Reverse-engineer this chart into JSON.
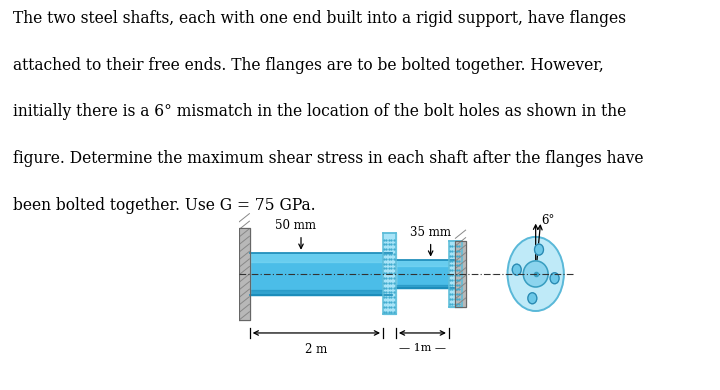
{
  "text_lines": [
    "The two steel shafts, each with one end built into a rigid support, have flanges",
    "attached to their free ends. The flanges are to be bolted together. However,",
    "initially there is a 6° mismatch in the location of the bolt holes as shown in the",
    "figure. Determine the maximum shear stress in each shaft after the flanges have",
    "been bolted together. Use G = 75 GPa."
  ],
  "font_size": 11.2,
  "bg_color": "#ffffff",
  "shaft_color_light": "#7dd8f5",
  "shaft_color_mid": "#4bbde8",
  "shaft_color_dark": "#1a8ab8",
  "wall_color": "#b8b8b8",
  "wall_hatch_color": "#888888",
  "flange_face_color": "#a8e4f8",
  "flange_face_dark": "#5bbcd8",
  "centerline_color": "#444444",
  "dim_color": "#000000",
  "label_50mm": "50 mm",
  "label_35mm": "35 mm",
  "label_2m": "— 2 m —",
  "label_1m": "←—1m—→",
  "label_6deg": "6°"
}
